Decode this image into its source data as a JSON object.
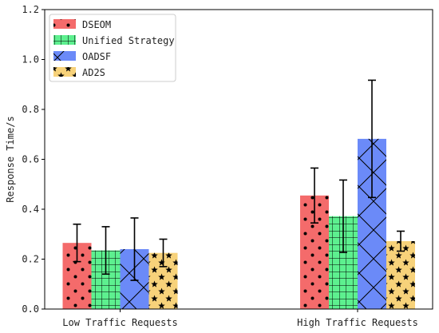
{
  "chart_data": {
    "type": "bar",
    "title": "",
    "xlabel": "",
    "ylabel": "Response Time/s",
    "ylim": [
      0,
      1.2
    ],
    "yticks": [
      "0.0",
      "0.2",
      "0.4",
      "0.6",
      "0.8",
      "1.0",
      "1.2"
    ],
    "grid": false,
    "legend_position": "top-left",
    "categories": [
      "Low Traffic Requests",
      "High Traffic Requests"
    ],
    "series": [
      {
        "name": "DSEOM",
        "values": [
          0.265,
          0.455
        ],
        "errors": [
          0.075,
          0.11
        ],
        "color": "#f46b6b",
        "hatch": "dots"
      },
      {
        "name": "Unified Strategy",
        "values": [
          0.235,
          0.372
        ],
        "errors": [
          0.095,
          0.145
        ],
        "color": "#5df08f",
        "hatch": "grid"
      },
      {
        "name": "OADSF",
        "values": [
          0.24,
          0.682
        ],
        "errors": [
          0.125,
          0.235
        ],
        "color": "#6b8af8",
        "hatch": "cross"
      },
      {
        "name": "AD2S",
        "values": [
          0.225,
          0.272
        ],
        "errors": [
          0.055,
          0.04
        ],
        "color": "#f7d27a",
        "hatch": "stars"
      }
    ]
  }
}
